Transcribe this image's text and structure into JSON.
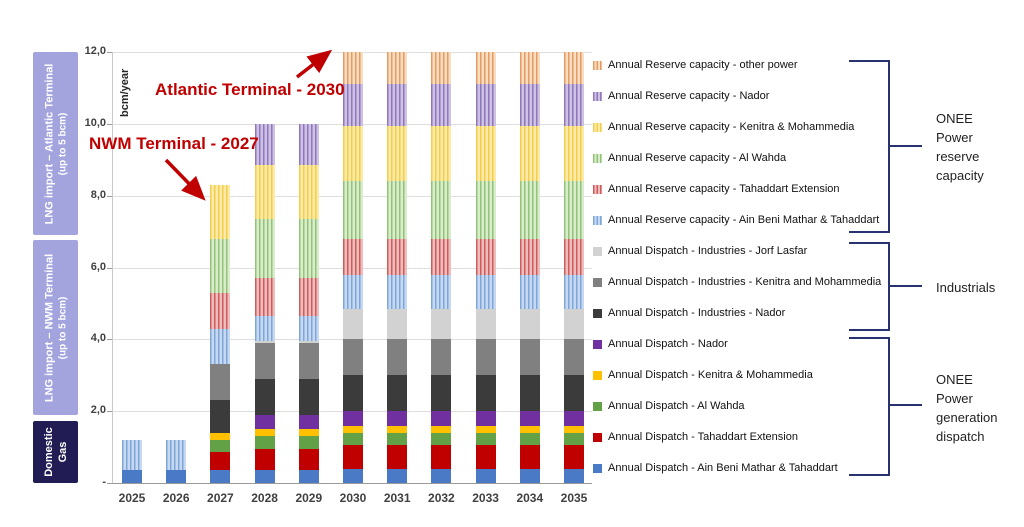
{
  "sidebar": {
    "atlantic": {
      "label": "LNG import – Atlantic Terminal",
      "sub": "(up to 5 bcm)"
    },
    "nwm": {
      "label": "LNG import – NWM Terminal",
      "sub": "(up to 5 bcm)"
    },
    "domestic": {
      "label": "Domestic",
      "sub": "Gas"
    }
  },
  "annotations": [
    {
      "text": "Atlantic Terminal - 2030"
    },
    {
      "text": "NWM Terminal - 2027"
    }
  ],
  "groups": [
    {
      "label": "ONEE\nPower\nreserve\ncapacity"
    },
    {
      "label": "Industrials"
    },
    {
      "label": "ONEE\nPower\ngeneration\ndispatch"
    }
  ],
  "accent_colors": {
    "annotation_red": "#c00000",
    "bracket_navy": "#283271",
    "sidebar_lilac": "#a3a4de",
    "sidebar_navy": "#211d54"
  },
  "chart_data": {
    "type": "bar",
    "stacked": true,
    "ylabel": "bcm/year",
    "ylim": [
      0,
      12
    ],
    "ytick_values": [
      0,
      2,
      4,
      6,
      8,
      10,
      12
    ],
    "ytick_labels": [
      "-",
      "2,0",
      "4,0",
      "6,0",
      "8,0",
      "10,0",
      "12,0"
    ],
    "grid": true,
    "legend_position": "right",
    "categories": [
      "2025",
      "2026",
      "2027",
      "2028",
      "2029",
      "2030",
      "2031",
      "2032",
      "2033",
      "2034",
      "2035"
    ],
    "bar_totals": [
      1.2,
      1.2,
      8.3,
      10.0,
      10.0,
      12.0,
      12.0,
      12.0,
      12.0,
      12.0,
      12.0
    ],
    "series": [
      {
        "name": "Annual Dispatch - Ain Beni Mathar & Tahaddart",
        "color": "#4a79c6",
        "stripe": null,
        "values": [
          0.35,
          0.35,
          0.35,
          0.35,
          0.35,
          0.4,
          0.4,
          0.4,
          0.4,
          0.4,
          0.4
        ]
      },
      {
        "name": "Annual Dispatch - Tahaddart Extension",
        "color": "#c00000",
        "stripe": null,
        "values": [
          0,
          0,
          0.5,
          0.6,
          0.6,
          0.65,
          0.65,
          0.65,
          0.65,
          0.65,
          0.65
        ]
      },
      {
        "name": "Annual Dispatch - Al Wahda",
        "color": "#62a146",
        "stripe": null,
        "values": [
          0,
          0,
          0.35,
          0.35,
          0.35,
          0.33,
          0.33,
          0.33,
          0.33,
          0.33,
          0.33
        ]
      },
      {
        "name": "Annual Dispatch - Kenitra & Mohammedia",
        "color": "#ffc000",
        "stripe": null,
        "values": [
          0,
          0,
          0.2,
          0.2,
          0.2,
          0.22,
          0.22,
          0.22,
          0.22,
          0.22,
          0.22
        ]
      },
      {
        "name": "Annual Dispatch - Nador",
        "color": "#7030a0",
        "stripe": null,
        "values": [
          0,
          0,
          0,
          0.4,
          0.4,
          0.4,
          0.4,
          0.4,
          0.4,
          0.4,
          0.4
        ]
      },
      {
        "name": "Annual Dispatch - Industries - Nador",
        "color": "#3b3b3b",
        "stripe": null,
        "values": [
          0,
          0,
          0.9,
          1.0,
          1.0,
          1.0,
          1.0,
          1.0,
          1.0,
          1.0,
          1.0
        ]
      },
      {
        "name": "Annual Dispatch - Industries - Kenitra and Mohammedia",
        "color": "#808080",
        "stripe": null,
        "values": [
          0,
          0,
          1.0,
          1.0,
          1.0,
          1.0,
          1.0,
          1.0,
          1.0,
          1.0,
          1.0
        ]
      },
      {
        "name": "Annual Dispatch - Industries - Jorf Lasfar",
        "color": "#d2d2d2",
        "stripe": null,
        "values": [
          0,
          0,
          0,
          0.05,
          0.05,
          0.85,
          0.85,
          0.85,
          0.85,
          0.85,
          0.85
        ]
      },
      {
        "name": "Annual Reserve capacity - Ain Beni Mathar & Tahaddart",
        "color": "#c6d9f1",
        "stripe": "#7ea6d9",
        "values": [
          0.85,
          0.85,
          1.0,
          0.7,
          0.7,
          0.95,
          0.95,
          0.95,
          0.95,
          0.95,
          0.95
        ]
      },
      {
        "name": "Annual Reserve capacity - Tahaddart Extension",
        "color": "#edbcbc",
        "stripe": "#cf5b5b",
        "values": [
          0,
          0,
          1.0,
          1.05,
          1.05,
          1.0,
          1.0,
          1.0,
          1.0,
          1.0,
          1.0
        ]
      },
      {
        "name": "Annual Reserve capacity - Al Wahda",
        "color": "#d9ecce",
        "stripe": "#93c475",
        "values": [
          0,
          0,
          1.5,
          1.65,
          1.65,
          1.6,
          1.6,
          1.6,
          1.6,
          1.6,
          1.6
        ]
      },
      {
        "name": "Annual Reserve capacity - Kenitra & Mohammedia",
        "color": "#fceaa8",
        "stripe": "#f2cd4e",
        "values": [
          0,
          0,
          1.5,
          1.5,
          1.5,
          1.55,
          1.55,
          1.55,
          1.55,
          1.55,
          1.55
        ]
      },
      {
        "name": "Annual Reserve capacity - Nador",
        "color": "#cdc2e2",
        "stripe": "#8f76bd",
        "values": [
          0,
          0,
          0,
          1.15,
          1.15,
          1.15,
          1.15,
          1.15,
          1.15,
          1.15,
          1.15
        ]
      },
      {
        "name": "Annual Reserve capacity - other power",
        "color": "#f7ddc2",
        "stripe": "#e69b62",
        "values": [
          0,
          0,
          0,
          0,
          0,
          0.9,
          0.9,
          0.9,
          0.9,
          0.9,
          0.9
        ]
      }
    ]
  }
}
